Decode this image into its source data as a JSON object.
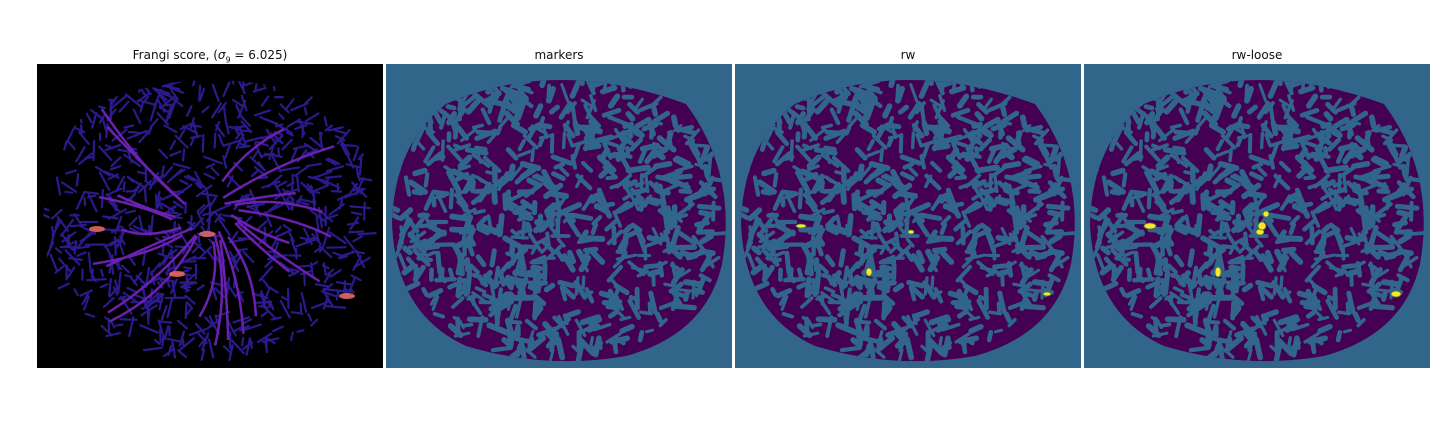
{
  "figure": {
    "panels": [
      {
        "id": "frangi",
        "title_prefix": "Frangi score, (",
        "title_var": "σ",
        "title_sub": "9",
        "title_suffix": " = 6.025)",
        "background": "#000000",
        "blob_color": "#2a1a8c",
        "ridge_color": "#6a20b0",
        "highlight_color": "#f07060"
      },
      {
        "id": "markers",
        "title": "markers",
        "background": "#31668a",
        "blob_color": "#440154",
        "highlight_color": "#fde725"
      },
      {
        "id": "rw",
        "title": "rw",
        "background": "#31668a",
        "blob_color": "#440154",
        "highlight_color": "#fde725"
      },
      {
        "id": "rw-loose",
        "title": "rw-loose",
        "background": "#31668a",
        "blob_color": "#440154",
        "highlight_color": "#fde725"
      }
    ]
  }
}
